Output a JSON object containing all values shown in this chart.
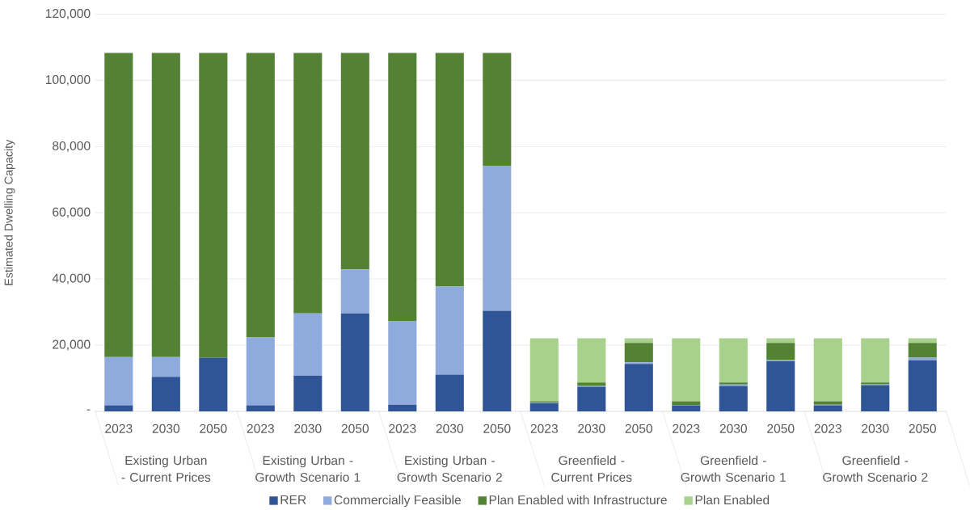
{
  "chart_data": {
    "type": "bar",
    "stacked": true,
    "ylabel": "Estimated Dwelling Capacity",
    "categories": [
      "2023",
      "2030",
      "2050",
      "2023",
      "2030",
      "2050",
      "2023",
      "2030",
      "2050",
      "2023",
      "2030",
      "2050",
      "2023",
      "2030",
      "2050",
      "2023",
      "2030",
      "2050"
    ],
    "annotations": [
      "Existing Urban - Current Prices",
      "Existing Urban - Growth Scenario 1",
      "Existing Urban - Growth Scenario 2",
      "Greenfield - Current Prices",
      "Greenfield - Growth Scenario 1",
      "Greenfield - Growth Scenario 2"
    ],
    "series": [
      {
        "name": "RER",
        "color": "#2f5597",
        "values": [
          1800,
          10400,
          16200,
          1800,
          10800,
          29600,
          2000,
          11100,
          30400,
          2400,
          7400,
          14300,
          1800,
          7700,
          15100,
          1800,
          7900,
          15400
        ]
      },
      {
        "name": "Commercially Feasible",
        "color": "#8faadc",
        "values": [
          14600,
          6000,
          0,
          20500,
          18800,
          13300,
          25300,
          26600,
          43800,
          200,
          400,
          500,
          100,
          400,
          500,
          200,
          400,
          800
        ]
      },
      {
        "name": "Plan Enabled with Infrastructure",
        "color": "#548235",
        "values": [
          91900,
          91900,
          92100,
          86000,
          78700,
          65400,
          81000,
          70600,
          34100,
          400,
          900,
          5900,
          1100,
          600,
          5100,
          1000,
          400,
          4500
        ]
      },
      {
        "name": "Plan Enabled",
        "color": "#a9d18e",
        "values": [
          0,
          0,
          0,
          0,
          0,
          0,
          0,
          0,
          0,
          19100,
          13400,
          1400,
          19100,
          13400,
          1400,
          19100,
          13400,
          1400
        ]
      }
    ],
    "ylim": [
      0,
      120000
    ],
    "yticks": [
      {
        "value": 0,
        "label": "-"
      },
      {
        "value": 20000,
        "label": "20,000"
      },
      {
        "value": 40000,
        "label": "40,000"
      },
      {
        "value": 60000,
        "label": "60,000"
      },
      {
        "value": 80000,
        "label": "80,000"
      },
      {
        "value": 100000,
        "label": "100,000"
      },
      {
        "value": 120000,
        "label": "120,000"
      }
    ],
    "grid": "y",
    "legend": "bottom"
  }
}
